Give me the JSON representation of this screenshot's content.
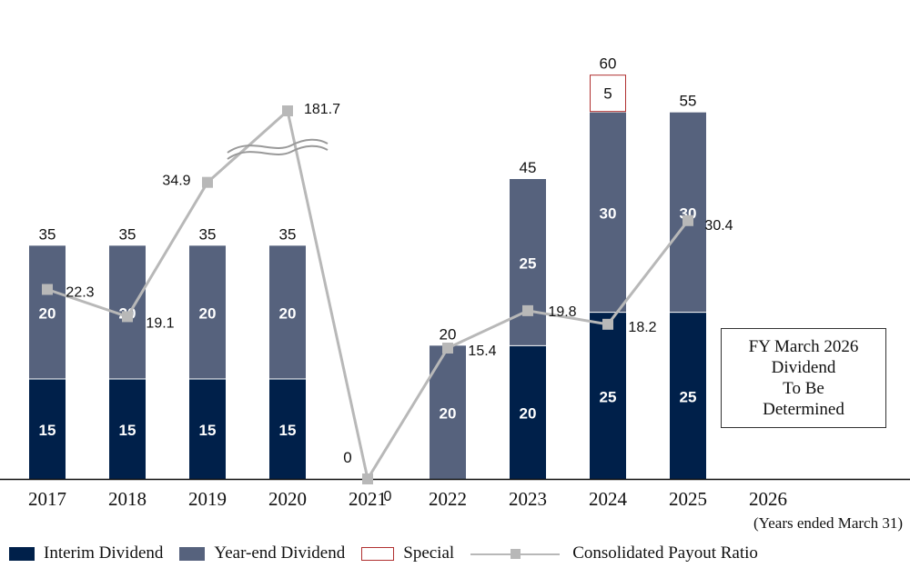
{
  "chart_data": {
    "type": "bar",
    "categories": [
      "2017",
      "2018",
      "2019",
      "2020",
      "2021",
      "2022",
      "2023",
      "2024",
      "2025",
      "2026"
    ],
    "series": [
      {
        "name": "Interim Dividend",
        "values": [
          15,
          15,
          15,
          15,
          0,
          0,
          20,
          25,
          25,
          null
        ],
        "color": "#00204a"
      },
      {
        "name": "Year-end Dividend",
        "values": [
          20,
          20,
          20,
          20,
          0,
          20,
          25,
          30,
          30,
          null
        ],
        "color": "#56627d"
      },
      {
        "name": "Special",
        "values": [
          0,
          0,
          0,
          0,
          0,
          0,
          0,
          5,
          0,
          null
        ],
        "color": "#b03030"
      }
    ],
    "totals": [
      35,
      35,
      35,
      35,
      0,
      20,
      45,
      60,
      55,
      null
    ],
    "payout_ratio": {
      "name": "Consolidated Payout Ratio",
      "values": [
        22.3,
        19.1,
        34.9,
        181.7,
        0,
        15.4,
        19.8,
        18.2,
        30.4,
        null
      ],
      "labels": [
        "22.3",
        "19.1",
        "34.9",
        "181.7",
        "0",
        "15.4",
        "19.8",
        "18.2",
        "30.4",
        ""
      ],
      "color": "#b8b8b8",
      "axis_break": "between 34.9 and 181.7"
    },
    "zero_dividend_label": "0",
    "ylim": [
      0,
      60
    ],
    "unit_note": "(Years ended March 31)",
    "note": "FY March 2026\nDividend\nTo Be\nDetermined"
  },
  "legend": {
    "interim": "Interim Dividend",
    "yearend": "Year-end Dividend",
    "special": "Special",
    "payout": "Consolidated Payout Ratio"
  }
}
